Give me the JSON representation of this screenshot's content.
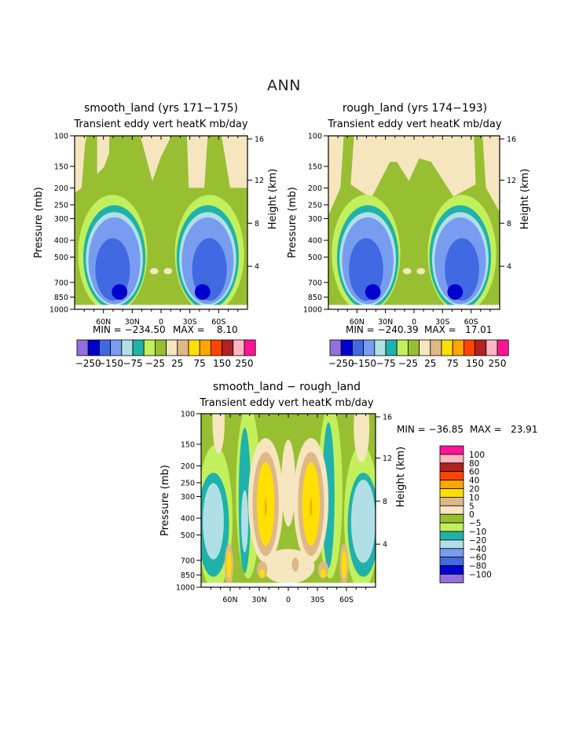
{
  "figure": {
    "title": "ANN"
  },
  "palettes": {
    "top": [
      "#9370db",
      "#0000cd",
      "#4169e1",
      "#789cf0",
      "#b0e0e6",
      "#20b2aa",
      "#c2f05c",
      "#98bf32",
      "#f5e6c0",
      "#deb887",
      "#ffe000",
      "#ffa500",
      "#ff4500",
      "#b22222",
      "#ffb6c1",
      "#ff1493"
    ],
    "diff": [
      "#9370db",
      "#0000cd",
      "#4169e1",
      "#789cf0",
      "#b0e0e6",
      "#20b2aa",
      "#c2f05c",
      "#98bf32",
      "#f5e6c0",
      "#deb887",
      "#ffe000",
      "#ffa500",
      "#ff4500",
      "#b22222",
      "#ffb6c1",
      "#ff1493"
    ]
  },
  "chart_data": [
    {
      "type": "heatmap",
      "title": "smooth_land (yrs 171−175)",
      "subtitle": "Transient eddy vert heatK mb/day",
      "ylabel": "Pressure (mb)",
      "ylabel_right": "Height (km)",
      "x_ticks": [
        "60N",
        "30N",
        "0",
        "30S",
        "60S"
      ],
      "y_ticks": [
        "100",
        "150",
        "200",
        "250",
        "300",
        "400",
        "500",
        "700",
        "850",
        "1000"
      ],
      "y_right_ticks": [
        "16",
        "12",
        "8",
        "4"
      ],
      "min_label": "MIN = −234.50",
      "max_label": "MAX =    8.10",
      "min": -234.5,
      "max": 8.1,
      "levels": [
        -250,
        -200,
        -150,
        -100,
        -75,
        -50,
        -25,
        -10,
        10,
        25,
        50,
        75,
        100,
        150,
        200,
        250
      ],
      "colorbar_labels": [
        "−250",
        "−150",
        "−75",
        "−25",
        "25",
        "75",
        "150",
        "250"
      ],
      "colorbar_orientation": "horizontal"
    },
    {
      "type": "heatmap",
      "title": "rough_land (yrs 174−193)",
      "subtitle": "Transient eddy vert heatK mb/day",
      "ylabel": "Pressure (mb)",
      "ylabel_right": "Height (km)",
      "x_ticks": [
        "60N",
        "30N",
        "0",
        "30S",
        "60S"
      ],
      "y_ticks": [
        "100",
        "150",
        "200",
        "250",
        "300",
        "400",
        "500",
        "700",
        "850",
        "1000"
      ],
      "y_right_ticks": [
        "16",
        "12",
        "8",
        "4"
      ],
      "min_label": "MIN = −240.39",
      "max_label": "MAX =   17.01",
      "min": -240.39,
      "max": 17.01,
      "levels": [
        -250,
        -200,
        -150,
        -100,
        -75,
        -50,
        -25,
        -10,
        10,
        25,
        50,
        75,
        100,
        150,
        200,
        250
      ],
      "colorbar_labels": [
        "−250",
        "−150",
        "−75",
        "−25",
        "25",
        "75",
        "150",
        "250"
      ],
      "colorbar_orientation": "horizontal"
    },
    {
      "type": "heatmap",
      "title": "smooth_land − rough_land",
      "subtitle": "Transient eddy vert heatK mb/day",
      "ylabel": "Pressure (mb)",
      "ylabel_right": "Height (km)",
      "x_ticks": [
        "60N",
        "30N",
        "0",
        "30S",
        "60S"
      ],
      "y_ticks": [
        "100",
        "150",
        "200",
        "250",
        "300",
        "400",
        "500",
        "700",
        "850",
        "1000"
      ],
      "y_right_ticks": [
        "16",
        "12",
        "8",
        "4"
      ],
      "min_label": "MIN = −36.85",
      "max_label": "MAX =   23.91",
      "min": -36.85,
      "max": 23.91,
      "levels": [
        -100,
        -80,
        -60,
        -40,
        -20,
        -10,
        -5,
        0,
        5,
        10,
        20,
        40,
        60,
        80,
        100
      ],
      "colorbar_labels": [
        "100",
        "80",
        "60",
        "40",
        "20",
        "10",
        "5",
        "0",
        "−5",
        "−10",
        "−20",
        "−40",
        "−60",
        "−80",
        "−100"
      ],
      "colorbar_orientation": "vertical"
    }
  ]
}
